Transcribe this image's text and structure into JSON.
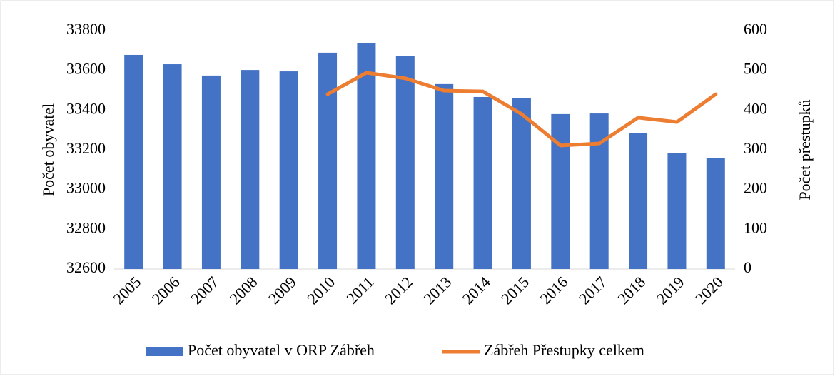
{
  "chart_data": {
    "type": "bar_line",
    "categories": [
      "2005",
      "2006",
      "2007",
      "2008",
      "2009",
      "2010",
      "2011",
      "2012",
      "2013",
      "2014",
      "2015",
      "2016",
      "2017",
      "2018",
      "2019",
      "2020"
    ],
    "series": [
      {
        "name": "Počet obyvatel v ORP Zábřeh",
        "type": "bar",
        "color": "#4472c4",
        "axis": "y",
        "values": [
          33678,
          33631,
          33574,
          33602,
          33595,
          33689,
          33739,
          33671,
          33531,
          33466,
          33459,
          33380,
          33383,
          33283,
          33182,
          33157
        ]
      },
      {
        "name": "Zábřeh Přestupky celkem",
        "type": "line",
        "color": "#ed7d31",
        "axis": "y2",
        "values": [
          null,
          null,
          null,
          null,
          null,
          440,
          494,
          480,
          449,
          447,
          390,
          311,
          316,
          381,
          370,
          440
        ]
      }
    ],
    "ylabel": "Počet obyvatel",
    "y2label": "Počet přestupků",
    "ylim": [
      32600,
      33800
    ],
    "yticks": [
      32600,
      32800,
      33000,
      33200,
      33400,
      33600,
      33800
    ],
    "y2lim": [
      0,
      600
    ],
    "y2ticks": [
      0,
      100,
      200,
      300,
      400,
      500,
      600
    ],
    "legend": "bottom"
  }
}
